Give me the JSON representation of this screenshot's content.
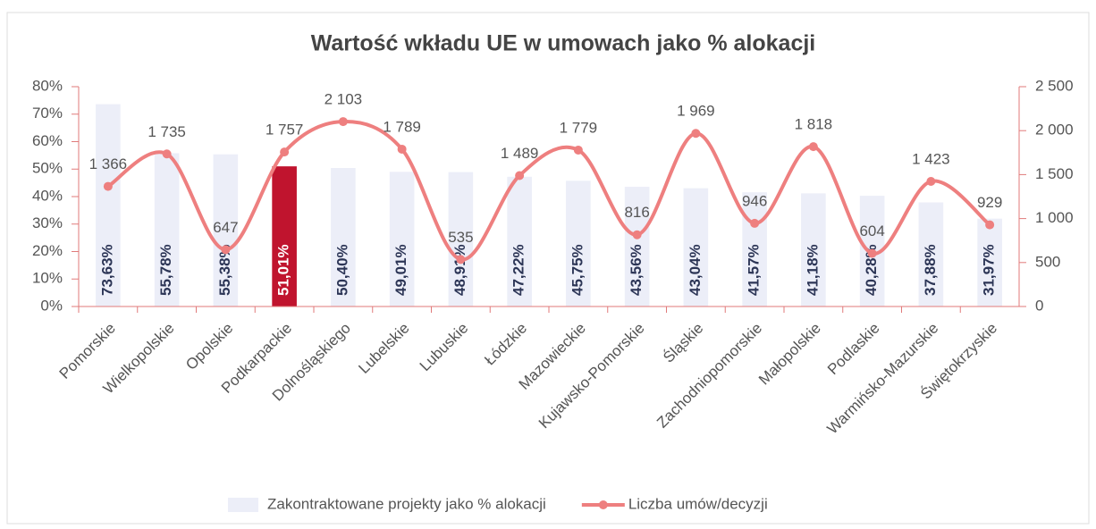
{
  "chart_data": {
    "type": "bar-line",
    "title": "Wartość wkładu UE w umowach jako % alokacji",
    "categories": [
      "Pomorskie",
      "Wielkopolskie",
      "Opolskie",
      "Podkarpackie",
      "Dolnośląskiego",
      "Lubelskie",
      "Lubuskie",
      "Łódzkie",
      "Mazowieckie",
      "Kujawsko-Pomorskie",
      "Śląskie",
      "Zachodniopomorskie",
      "Małopolskie",
      "Podlaskie",
      "Warmińsko-Mazurskie",
      "Świętokrzyskie"
    ],
    "series": [
      {
        "name": "Zakontraktowane projekty jako % alokacji",
        "type": "bar",
        "color": "#eceef8",
        "colors": [
          "#eceef8",
          "#eceef8",
          "#eceef8",
          "#c0142e",
          "#eceef8",
          "#eceef8",
          "#eceef8",
          "#eceef8",
          "#eceef8",
          "#eceef8",
          "#eceef8",
          "#eceef8",
          "#eceef8",
          "#eceef8",
          "#eceef8",
          "#eceef8"
        ],
        "values": [
          73.63,
          55.78,
          55.38,
          51.01,
          50.4,
          49.01,
          48.91,
          47.22,
          45.75,
          43.56,
          43.04,
          41.57,
          41.18,
          40.28,
          37.88,
          31.97
        ],
        "value_labels": [
          "73,63%",
          "55,78%",
          "55,38%",
          "51,01%",
          "50,40%",
          "49,01%",
          "48,91%",
          "47,22%",
          "45,75%",
          "43,56%",
          "43,04%",
          "41,57%",
          "41,18%",
          "40,28%",
          "37,88%",
          "31,97%"
        ]
      },
      {
        "name": "Liczba umów/decyzji",
        "type": "line",
        "axis": "y2",
        "color": "#ee7f7f",
        "values": [
          1366,
          1735,
          647,
          1757,
          2103,
          1789,
          535,
          1489,
          1779,
          816,
          1969,
          946,
          1818,
          604,
          1423,
          929
        ],
        "value_labels": [
          "1 366",
          "1 735",
          "647",
          "1 757",
          "2 103",
          "1 789",
          "535",
          "1 489",
          "1 779",
          "816",
          "1 969",
          "946",
          "1 818",
          "604",
          "1 423",
          "929"
        ]
      }
    ],
    "ylim": [
      0,
      80
    ],
    "yticks": [
      {
        "value": 0,
        "label": "0%"
      },
      {
        "value": 10,
        "label": "10%"
      },
      {
        "value": 20,
        "label": "20%"
      },
      {
        "value": 30,
        "label": "30%"
      },
      {
        "value": 40,
        "label": "40%"
      },
      {
        "value": 50,
        "label": "50%"
      },
      {
        "value": 60,
        "label": "60%"
      },
      {
        "value": 70,
        "label": "70%"
      },
      {
        "value": 80,
        "label": "80%"
      }
    ],
    "y2lim": [
      0,
      2500
    ],
    "y2ticks": [
      0,
      500,
      {
        "value": 1000,
        "label": "1 000"
      },
      {
        "value": 1500,
        "label": "1 500"
      },
      {
        "value": 2000,
        "label": "2 000"
      },
      {
        "value": 2500,
        "label": "2 500"
      }
    ],
    "legend": "bottom"
  }
}
